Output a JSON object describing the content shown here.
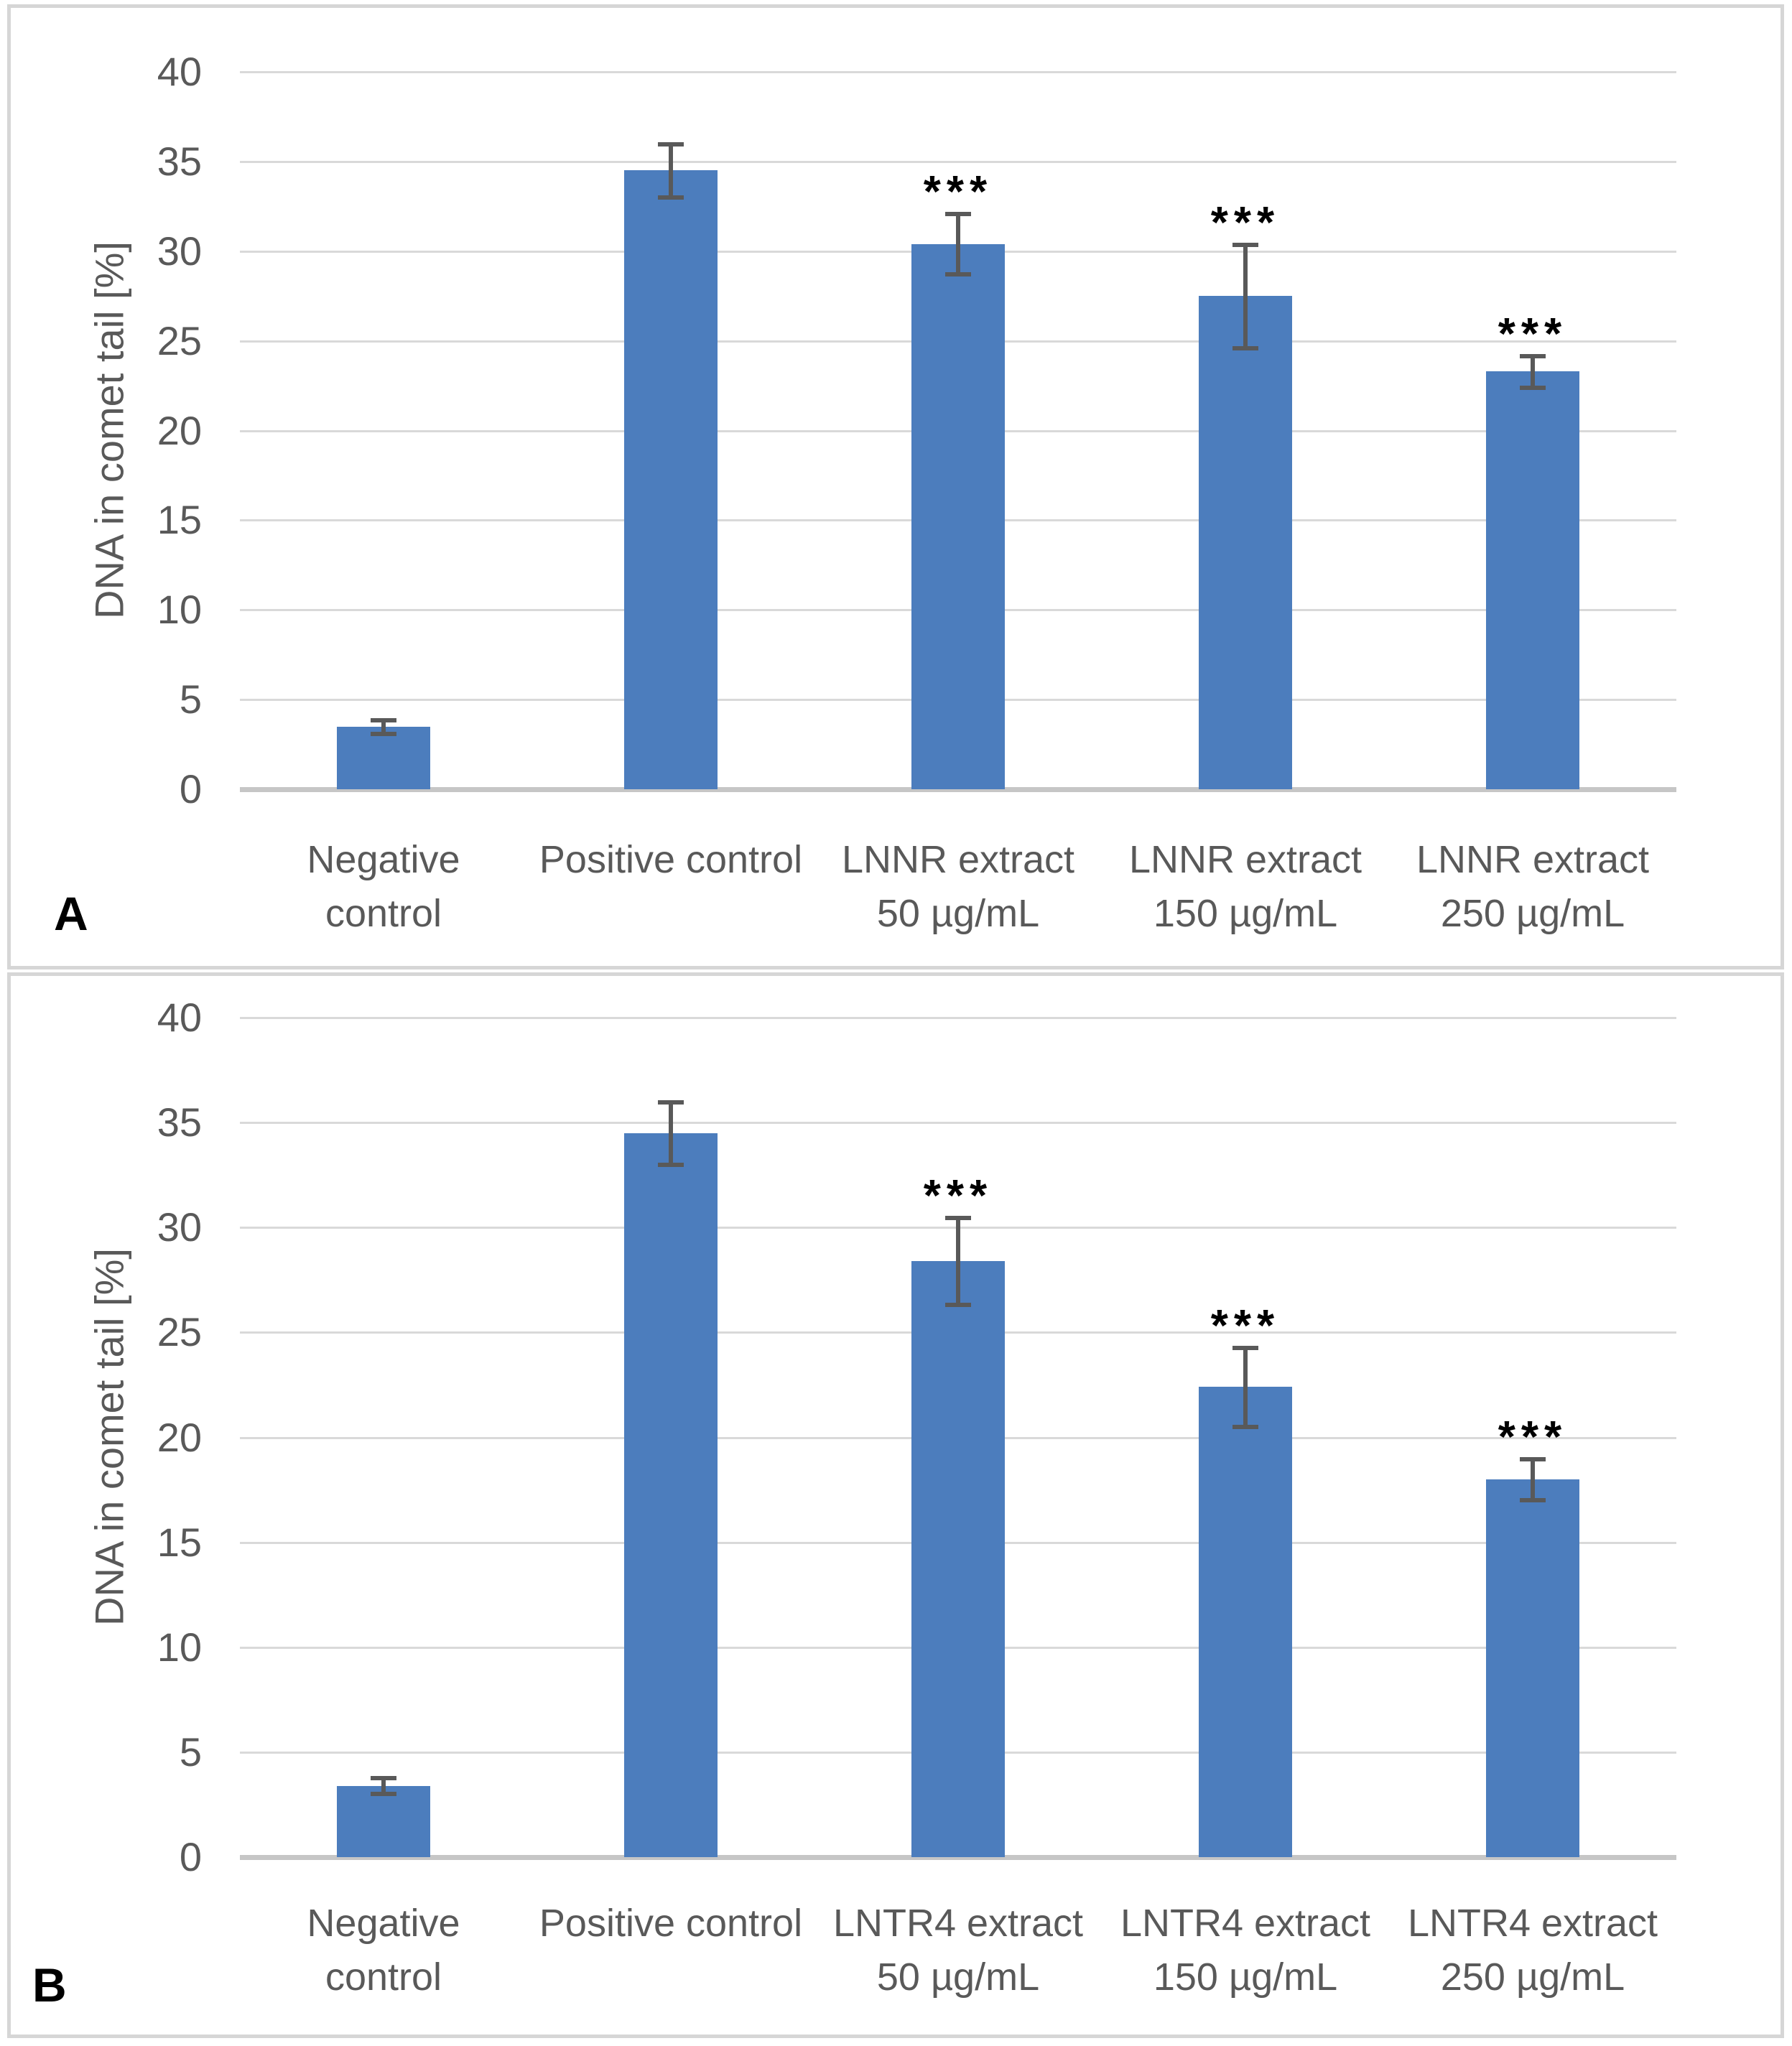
{
  "panels": [
    {
      "label": "A"
    },
    {
      "label": "B"
    }
  ],
  "chart_data": [
    {
      "type": "bar",
      "panel": "A",
      "title": "",
      "xlabel": "",
      "ylabel": "DNA in comet tail [%]",
      "ylim": [
        0,
        40
      ],
      "yticks": [
        0,
        5,
        10,
        15,
        20,
        25,
        30,
        35,
        40
      ],
      "grid": true,
      "legend_position": "none",
      "categories": [
        "Negative control",
        "Positive control",
        "LNNR extract 50 µg/mL",
        "LNNR extract 150 µg/mL",
        "LNNR extract 250 µg/mL"
      ],
      "category_lines": [
        [
          "Negative",
          "control"
        ],
        [
          "Positive control"
        ],
        [
          "LNNR extract",
          "50 µg/mL"
        ],
        [
          "LNNR extract",
          "150 µg/mL"
        ],
        [
          "LNNR extract",
          "250 µg/mL"
        ]
      ],
      "values": [
        3.5,
        34.5,
        30.4,
        27.5,
        23.3
      ],
      "errors": [
        0.4,
        1.5,
        1.7,
        2.9,
        0.9
      ],
      "significance": [
        "",
        "",
        "***",
        "***",
        "***"
      ],
      "bar_color": "#4c7dbd",
      "error_bar_color": "#595959",
      "grid_color": "#d9d9d9",
      "axis_line_color": "#c6c6c6",
      "text_color": "#595959"
    },
    {
      "type": "bar",
      "panel": "B",
      "title": "",
      "xlabel": "",
      "ylabel": "DNA in comet tail [%]",
      "ylim": [
        0,
        40
      ],
      "yticks": [
        0,
        5,
        10,
        15,
        20,
        25,
        30,
        35,
        40
      ],
      "grid": true,
      "legend_position": "none",
      "categories": [
        "Negative control",
        "Positive control",
        "LNTR4 extract 50 µg/mL",
        "LNTR4 extract 150 µg/mL",
        "LNTR4 extract 250 µg/mL"
      ],
      "category_lines": [
        [
          "Negative",
          "control"
        ],
        [
          "Positive control"
        ],
        [
          "LNTR4 extract",
          "50 µg/mL"
        ],
        [
          "LNTR4 extract",
          "150 µg/mL"
        ],
        [
          "LNTR4 extract",
          "250 µg/mL"
        ]
      ],
      "values": [
        3.4,
        34.5,
        28.4,
        22.4,
        18.0
      ],
      "errors": [
        0.4,
        1.5,
        2.1,
        1.9,
        1.0
      ],
      "significance": [
        "",
        "",
        "***",
        "***",
        "***"
      ],
      "bar_color": "#4c7dbd",
      "error_bar_color": "#595959",
      "grid_color": "#d9d9d9",
      "axis_line_color": "#c6c6c6",
      "text_color": "#595959"
    }
  ]
}
